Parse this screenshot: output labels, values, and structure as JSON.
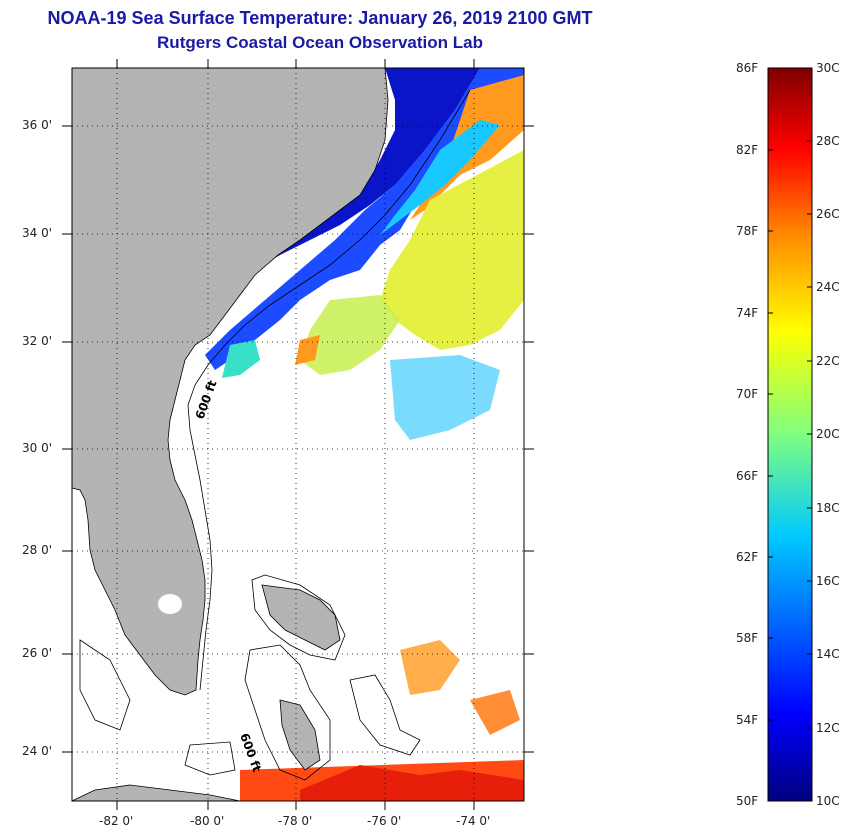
{
  "title": {
    "line1": "NOAA-19 Sea Surface Temperature:  January 26, 2019 2100 GMT",
    "line2": "Rutgers Coastal Ocean Observation Lab"
  },
  "map": {
    "lat_ticks": [
      "36 0'",
      "34 0'",
      "32 0'",
      "30 0'",
      "28 0'",
      "26 0'",
      "24 0'"
    ],
    "lon_ticks": [
      "-82 0'",
      "-80 0'",
      "-78 0'",
      "-76 0'",
      "-74 0'"
    ],
    "isobath_label_1": "600 ft",
    "isobath_label_2": "600 ft",
    "land_color": "#b4b4b4"
  },
  "colorbar": {
    "fahrenheit": [
      "86F",
      "82F",
      "78F",
      "74F",
      "70F",
      "66F",
      "62F",
      "58F",
      "54F",
      "50F"
    ],
    "celsius": [
      "30C",
      "28C",
      "26C",
      "24C",
      "22C",
      "20C",
      "18C",
      "16C",
      "14C",
      "12C",
      "10C"
    ],
    "top_color": "#7f0000",
    "bottom_color": "#00007f"
  }
}
